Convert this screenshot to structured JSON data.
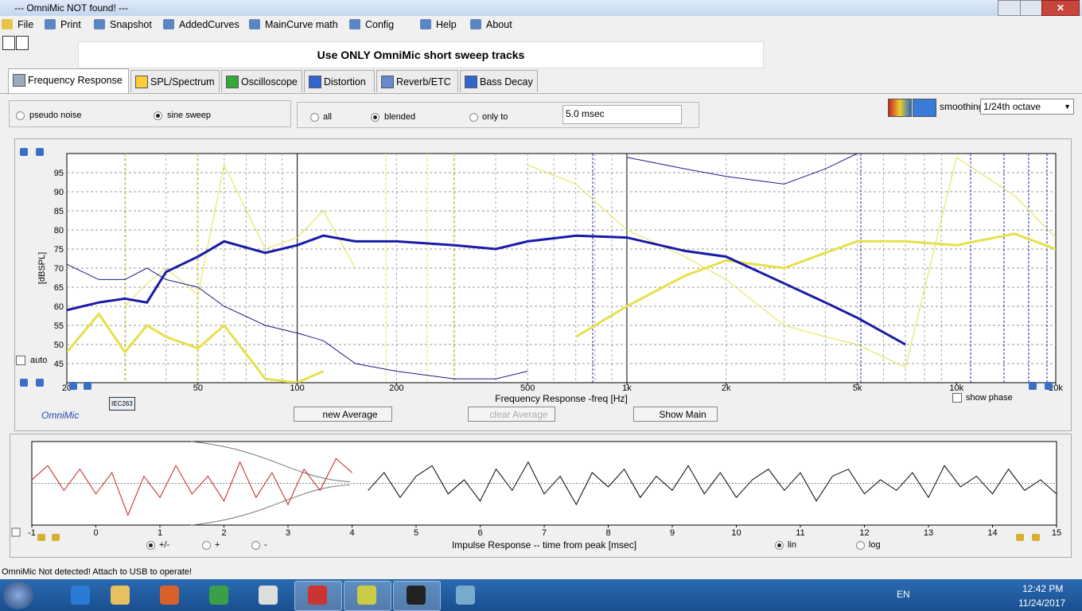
{
  "window": {
    "title": "--- OmniMic NOT found! ---"
  },
  "menu": [
    "File",
    "Print",
    "Snapshot",
    "AddedCurves",
    "MainCurve math",
    "Config",
    "Help",
    "About"
  ],
  "banner": "Use ONLY OmniMic short sweep tracks",
  "tabs": [
    "Frequency Response",
    "SPL/Spectrum",
    "Oscilloscope",
    "Distortion",
    "Reverb/ETC",
    "Bass Decay"
  ],
  "stimulus": {
    "options": [
      "pseudo noise",
      "sine sweep"
    ],
    "selected": 1
  },
  "gating": {
    "options": [
      "all",
      "blended",
      "only to"
    ],
    "selected": 1,
    "time": "5.0 msec"
  },
  "smoothing": {
    "label": "smoothing",
    "value": "1/24th octave"
  },
  "freq_panel": {
    "auto": "auto",
    "brand": "OmniMic",
    "mic": "IEC263",
    "show_phase": "show phase",
    "buttons": [
      "new Average",
      "clear Average",
      "Show Main"
    ]
  },
  "impulse_panel": {
    "polarity": [
      "+/-",
      "+",
      "-"
    ],
    "polarity_selected": 0,
    "scale": [
      "lin",
      "log"
    ],
    "scale_selected": 0
  },
  "chart_data": [
    {
      "type": "line",
      "xlabel": "Frequency Response -freq [Hz]",
      "ylabel": "[dBSPL]",
      "xscale": "log",
      "grid": true,
      "xlim": [
        20,
        20000
      ],
      "ylim": [
        40,
        100
      ],
      "xticks": [
        20,
        50,
        100,
        200,
        500,
        {
          "value": 1000,
          "label": "1k"
        },
        {
          "value": 2000,
          "label": "2k"
        },
        {
          "value": 5000,
          "label": "5k"
        },
        {
          "value": 10000,
          "label": "10k"
        },
        {
          "value": 20000,
          "label": "20k"
        }
      ],
      "yticks": [
        45,
        50,
        55,
        60,
        65,
        70,
        75,
        80,
        85,
        90,
        95
      ],
      "x": [
        20,
        25,
        30,
        35,
        40,
        50,
        60,
        80,
        100,
        120,
        150,
        200,
        300,
        400,
        500,
        700,
        1000,
        1500,
        2000,
        3000,
        4000,
        5000,
        7000,
        10000,
        15000,
        20000
      ],
      "series": [
        {
          "color": "#e6e04a",
          "width": 1,
          "values": [
            null,
            null,
            60,
            66,
            70,
            63,
            97,
            75,
            78,
            85,
            70,
            null,
            null,
            null,
            97,
            92,
            80,
            73,
            67,
            55,
            52,
            50,
            44,
            99,
            89,
            78
          ]
        },
        {
          "color": "#1a1a8c",
          "width": 1,
          "values": [
            71,
            67,
            67,
            70,
            67,
            65,
            60,
            55,
            53,
            51,
            45,
            43,
            41,
            41,
            43,
            null,
            99,
            96,
            94,
            92,
            96,
            100,
            null,
            null,
            null,
            null
          ]
        },
        {
          "color": "#e6e04a",
          "width": 3,
          "values": [
            48,
            58,
            48,
            55,
            52,
            49,
            55,
            41,
            40,
            43,
            null,
            null,
            null,
            null,
            null,
            52,
            60,
            68,
            72,
            70,
            74,
            77,
            77,
            76,
            79,
            75
          ]
        },
        {
          "color": "#1a1aa8",
          "width": 3,
          "values": [
            59,
            61,
            62,
            61,
            69,
            73,
            77,
            74,
            76,
            78.5,
            77,
            77,
            76,
            75,
            77,
            78.5,
            78,
            74.5,
            73,
            66,
            61,
            57,
            50,
            null,
            null,
            null
          ]
        }
      ]
    },
    {
      "type": "line",
      "xlabel": "Impulse Response  -- time from peak [msec]",
      "xlim": [
        -1,
        15
      ],
      "ylim": [
        -1,
        1
      ],
      "xticks": [
        -1,
        0,
        1,
        2,
        3,
        4,
        5,
        6,
        7,
        8,
        9,
        10,
        11,
        12,
        13,
        14,
        15
      ],
      "series": [
        {
          "color": "#c81e1e",
          "x": [
            -1,
            -0.75,
            -0.5,
            -0.25,
            0,
            0.25,
            0.5,
            0.75,
            1,
            1.25,
            1.5,
            1.75,
            2,
            2.25,
            2.5,
            2.75,
            3,
            3.25,
            3.5,
            3.75,
            4
          ],
          "values": [
            0.1,
            0.5,
            -0.2,
            0.4,
            -0.3,
            0.3,
            -0.9,
            0.2,
            -0.4,
            0.5,
            -0.3,
            0.2,
            -0.5,
            0.6,
            -0.4,
            0.3,
            -0.6,
            0.4,
            -0.2,
            0.7,
            0.3
          ]
        },
        {
          "color": "#000000",
          "x": [
            4.25,
            4.5,
            4.75,
            5,
            5.25,
            5.5,
            5.75,
            6,
            6.25,
            6.5,
            6.75,
            7,
            7.25,
            7.5,
            7.75,
            8,
            8.25,
            8.5,
            8.75,
            9,
            9.25,
            9.5,
            9.75,
            10,
            10.25,
            10.5,
            10.75,
            11,
            11.25,
            11.5,
            11.75,
            12,
            12.25,
            12.5,
            12.75,
            13,
            13.25,
            13.5,
            13.75,
            14,
            14.25,
            14.5,
            14.75,
            15
          ],
          "values": [
            -0.2,
            0.3,
            -0.4,
            0.2,
            0.5,
            -0.3,
            0.1,
            -0.5,
            0.4,
            -0.2,
            0.6,
            -0.3,
            0.2,
            -0.6,
            0.3,
            -0.1,
            0.4,
            -0.4,
            0.2,
            -0.2,
            0.5,
            -0.3,
            0.3,
            -0.4,
            0.1,
            0.4,
            -0.2,
            0.3,
            -0.5,
            0.2,
            0.4,
            -0.3,
            0.1,
            -0.2,
            0.3,
            -0.4,
            0.5,
            -0.1,
            0.2,
            -0.3,
            0.4,
            -0.2,
            0.1,
            -0.3
          ]
        }
      ]
    }
  ],
  "status": "OmniMic Not detected! Attach to USB to operate!",
  "taskbar": {
    "lang": "EN",
    "time": "12:42 PM",
    "date": "11/24/2017"
  }
}
